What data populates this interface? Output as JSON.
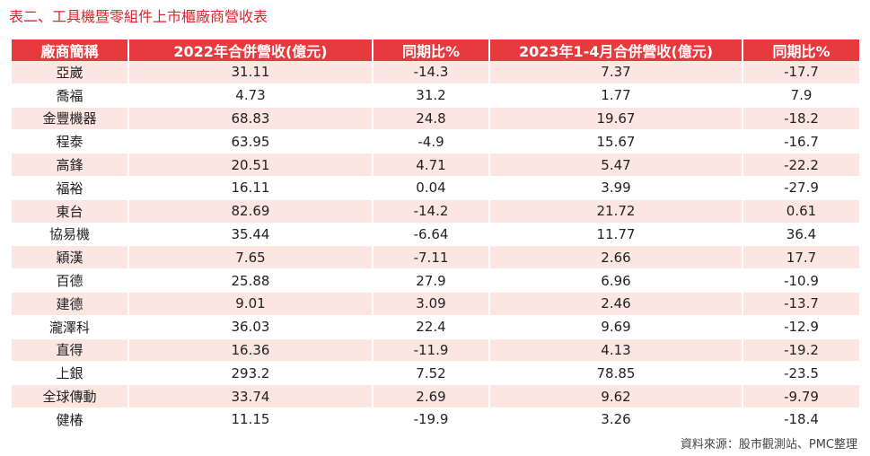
{
  "title": "表二、工具機暨零組件上市櫃廠商營收表",
  "table": {
    "headers": [
      "廠商簡稱",
      "2022年合併營收(億元)",
      "同期比%",
      "2023年1-4月合併營收(億元)",
      "同期比%"
    ],
    "rows": [
      [
        "亞崴",
        "31.11",
        "-14.3",
        "7.37",
        "-17.7"
      ],
      [
        "喬福",
        "4.73",
        "31.2",
        "1.77",
        "7.9"
      ],
      [
        "金豐機器",
        "68.83",
        "24.8",
        "19.67",
        "-18.2"
      ],
      [
        "程泰",
        "63.95",
        "-4.9",
        "15.67",
        "-16.7"
      ],
      [
        "高鋒",
        "20.51",
        "4.71",
        "5.47",
        "-22.2"
      ],
      [
        "福裕",
        "16.11",
        "0.04",
        "3.99",
        "-27.9"
      ],
      [
        "東台",
        "82.69",
        "-14.2",
        "21.72",
        "0.61"
      ],
      [
        "協易機",
        "35.44",
        "-6.64",
        "11.77",
        "36.4"
      ],
      [
        "穎漢",
        "7.65",
        "-7.11",
        "2.66",
        "17.7"
      ],
      [
        "百德",
        "25.88",
        "27.9",
        "6.96",
        "-10.9"
      ],
      [
        "建德",
        "9.01",
        "3.09",
        "2.46",
        "-13.7"
      ],
      [
        "瀧澤科",
        "36.03",
        "22.4",
        "9.69",
        "-12.9"
      ],
      [
        "直得",
        "16.36",
        "-11.9",
        "4.13",
        "-19.2"
      ],
      [
        "上銀",
        "293.2",
        "7.52",
        "78.85",
        "-23.5"
      ],
      [
        "全球傳動",
        "33.74",
        "2.69",
        "9.62",
        "-9.79"
      ],
      [
        "健椿",
        "11.15",
        "-19.9",
        "3.26",
        "-18.4"
      ]
    ]
  },
  "source": "資料來源：股市觀測站、PMC整理"
}
